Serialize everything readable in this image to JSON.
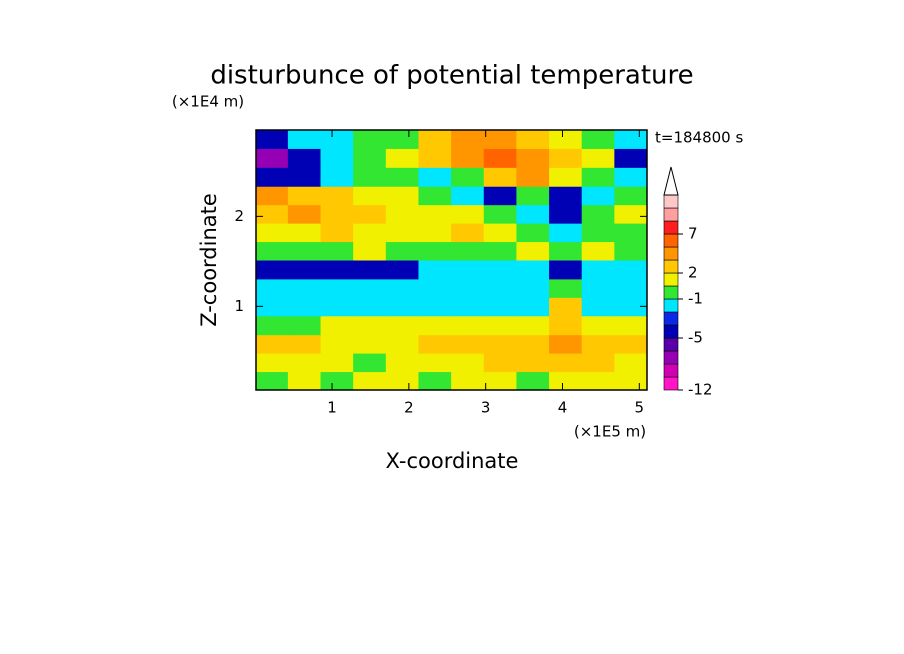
{
  "chart_data": {
    "type": "contour",
    "title": "disturbunce of potential temperature",
    "x_label": "X-coordinate",
    "y_label": "Z-coordinate",
    "x_unit": "(×1E5 m)",
    "y_unit": "(×1E4 m)",
    "time_label": "t=184800 s",
    "xlim": [
      0.01,
      5.1
    ],
    "ylim": [
      0.07,
      2.96
    ],
    "xticks": [
      1,
      2,
      3,
      4,
      5
    ],
    "yticks": [
      1,
      2
    ],
    "x": [
      0.21,
      0.64,
      1.06,
      1.49,
      1.91,
      2.34,
      2.76,
      3.19,
      3.61,
      4.04,
      4.46,
      4.89
    ],
    "y": [
      0.17,
      0.38,
      0.58,
      0.79,
      1.0,
      1.2,
      1.41,
      1.62,
      1.82,
      2.03,
      2.23,
      2.44,
      2.65,
      2.86
    ],
    "values": [
      [
        0,
        1.5,
        0,
        1.5,
        1.5,
        0,
        1.5,
        1.5,
        0,
        1.5,
        1.5,
        1.5
      ],
      [
        1.5,
        1.5,
        1.5,
        0,
        1.5,
        1.5,
        1.5,
        2.5,
        2.5,
        2.5,
        2.5,
        1.5
      ],
      [
        2.5,
        2.5,
        1.5,
        1.5,
        1.5,
        2.5,
        2.5,
        2.5,
        2.5,
        4,
        2.5,
        2.5
      ],
      [
        0,
        0,
        1.5,
        1.5,
        1.5,
        1.5,
        1.5,
        1.5,
        1.5,
        2.5,
        1.5,
        1.5
      ],
      [
        -1.5,
        -1.5,
        -1.5,
        -1.5,
        -1.5,
        -1.5,
        -1.5,
        -1.5,
        -1.5,
        2.5,
        -1.5,
        -1.5
      ],
      [
        -1.5,
        -1.5,
        -1.5,
        -1.5,
        -1.5,
        -1.5,
        -1.5,
        -1.5,
        -1.5,
        0,
        -1.5,
        -1.5
      ],
      [
        -4,
        -4,
        -4,
        -4,
        -4,
        -1.5,
        -1.5,
        -1.5,
        -1.5,
        -4,
        -1.5,
        -1.5
      ],
      [
        0,
        0,
        0,
        1.5,
        0,
        0,
        0,
        0,
        1.5,
        0,
        1.5,
        0
      ],
      [
        1.5,
        1.5,
        2.5,
        1.5,
        1.5,
        1.5,
        2.5,
        1.5,
        0,
        -1.5,
        0,
        0
      ],
      [
        2.5,
        4,
        2.5,
        2.5,
        1.5,
        1.5,
        1.5,
        0,
        -1.5,
        -4,
        0,
        1.5
      ],
      [
        4,
        2.5,
        2.5,
        1.5,
        1.5,
        0,
        -1.5,
        -4,
        0,
        -4,
        -1.5,
        0
      ],
      [
        -4,
        -4,
        -1.5,
        0,
        0,
        -1.5,
        0,
        2.5,
        4,
        1.5,
        0,
        -1.5
      ],
      [
        -7,
        -4,
        -1.5,
        0,
        1.5,
        2.5,
        4,
        6,
        4,
        2.5,
        1.5,
        -4
      ],
      [
        -4,
        -1.5,
        -1.5,
        0,
        0,
        2.5,
        4,
        4,
        2.5,
        1.5,
        0,
        -1.5
      ]
    ],
    "levels": [
      -12,
      -10,
      -8,
      -6,
      -5,
      -3,
      -2,
      -1,
      1,
      2,
      3,
      5,
      7,
      9,
      11,
      13
    ],
    "colors": [
      "#ff14c8",
      "#d200b4",
      "#9600b4",
      "#5a00aa",
      "#0000b4",
      "#0a28e6",
      "#00e6ff",
      "#32e632",
      "#f0f000",
      "#ffc800",
      "#ff9600",
      "#ff6400",
      "#ff1e1e",
      "#ffa0a0",
      "#ffc8c8"
    ],
    "colorbar_ticks": [
      -12,
      -5,
      -1,
      2,
      7
    ]
  }
}
